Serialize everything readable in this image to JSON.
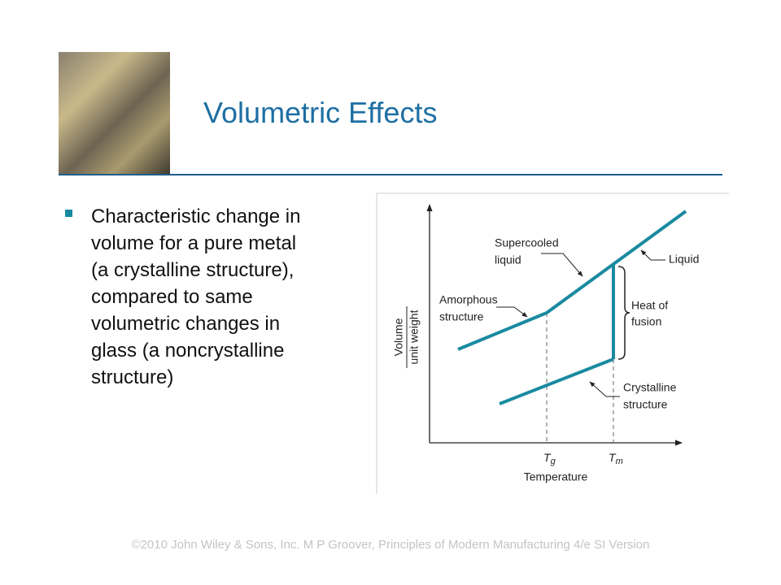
{
  "header": {
    "title": "Volumetric Effects"
  },
  "bullet": {
    "lines": [
      "Characteristic change in",
      "volume for a pure metal",
      "(a crystalline structure),",
      "compared to same",
      "volumetric changes in",
      "glass (a noncrystalline",
      "structure)"
    ]
  },
  "figure": {
    "y_axis_label": {
      "numerator": "Volume",
      "denominator": "unit weight"
    },
    "x_axis_label": "Temperature",
    "tg": {
      "symbol": "T",
      "subscript": "g"
    },
    "tm": {
      "symbol": "T",
      "subscript": "m"
    },
    "labels": {
      "supercooled": [
        "Supercooled",
        "liquid"
      ],
      "liquid": [
        "Liquid"
      ],
      "amorphous": [
        "Amorphous",
        "structure"
      ],
      "heat": [
        "Heat of",
        "fusion"
      ],
      "crystalline": [
        "Crystalline",
        "structure"
      ]
    }
  },
  "footer": "©2010 John Wiley & Sons, Inc.  M P Groover, Principles of Modern Manufacturing 4/e SI Version"
}
